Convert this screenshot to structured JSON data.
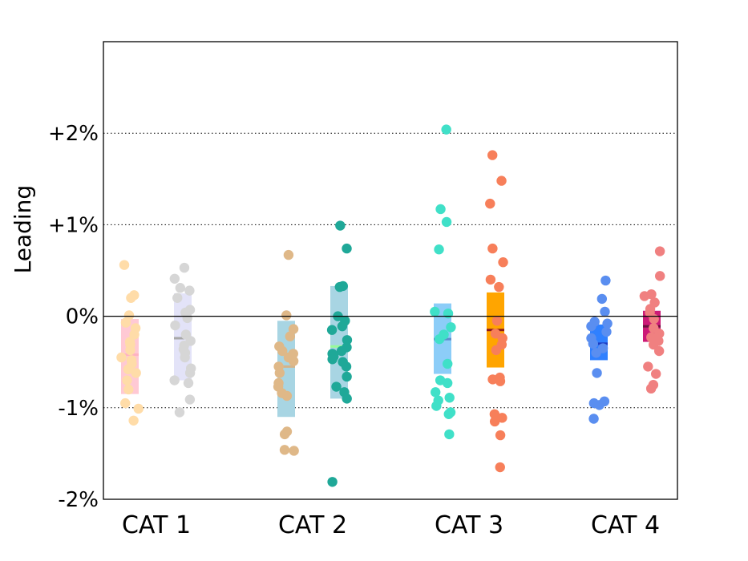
{
  "chart_data": {
    "type": "scatter",
    "ylabel": "Leading",
    "categories": [
      "CAT 1",
      "CAT 2",
      "CAT 3",
      "CAT 4"
    ],
    "y_ticks": [
      {
        "value": -2,
        "label": "-2%"
      },
      {
        "value": -1,
        "label": "-1%"
      },
      {
        "value": 0,
        "label": "0%"
      },
      {
        "value": 1,
        "label": "+1%"
      },
      {
        "value": 2,
        "label": "+2%"
      }
    ],
    "ylim": [
      -2,
      3
    ],
    "grid": "horizontal-dotted",
    "series": [
      {
        "category": "CAT 1",
        "position": "left",
        "point_color": "#ffdca8",
        "box_color": "#ffc9d4",
        "median_color": "#ffb3c1",
        "box": {
          "low": -0.85,
          "high": -0.03,
          "median": -0.42
        },
        "values": [
          0.56,
          0.23,
          0.2,
          0.01,
          -0.07,
          -0.13,
          -0.2,
          -0.28,
          -0.31,
          -0.37,
          -0.45,
          -0.48,
          -0.52,
          -0.58,
          -0.62,
          -0.7,
          -0.8,
          -0.95,
          -1.01,
          -1.14
        ]
      },
      {
        "category": "CAT 1",
        "position": "right",
        "point_color": "#d6d6d6",
        "box_color": "#e3e3f8",
        "median_color": "#a8a8a8",
        "box": {
          "low": -0.7,
          "high": 0.25,
          "median": -0.24
        },
        "values": [
          0.53,
          0.41,
          0.31,
          0.28,
          0.2,
          0.07,
          0.04,
          -0.02,
          -0.1,
          -0.2,
          -0.27,
          -0.32,
          -0.36,
          -0.4,
          -0.45,
          -0.57,
          -0.62,
          -0.7,
          -0.73,
          -0.91,
          -1.05
        ]
      },
      {
        "category": "CAT 2",
        "position": "left",
        "point_color": "#dfb888",
        "box_color": "#a8d5e3",
        "median_color": "#d2b48c",
        "box": {
          "low": -1.1,
          "high": -0.05,
          "median": -0.55
        },
        "values": [
          0.67,
          0.01,
          -0.14,
          -0.22,
          -0.33,
          -0.38,
          -0.41,
          -0.45,
          -0.49,
          -0.55,
          -0.62,
          -0.73,
          -0.77,
          -0.84,
          -0.87,
          -1.26,
          -1.29,
          -1.46,
          -1.47
        ]
      },
      {
        "category": "CAT 2",
        "position": "right",
        "point_color": "#1fa898",
        "box_color": "#a8d5e3",
        "median_color": "#98fb98",
        "box": {
          "low": -0.9,
          "high": 0.33,
          "median": -0.33
        },
        "values": [
          0.99,
          0.74,
          0.33,
          0.32,
          0.0,
          -0.05,
          -0.11,
          -0.15,
          -0.26,
          -0.34,
          -0.38,
          -0.41,
          -0.44,
          -0.47,
          -0.5,
          -0.55,
          -0.66,
          -0.77,
          -0.83,
          -0.9,
          -1.81
        ]
      },
      {
        "category": "CAT 3",
        "position": "left",
        "point_color": "#40e0c8",
        "box_color": "#8ccdf8",
        "median_color": "#5b8fcc",
        "box": {
          "low": -0.63,
          "high": 0.14,
          "median": -0.25
        },
        "values": [
          2.04,
          1.17,
          1.03,
          0.73,
          0.05,
          0.03,
          -0.12,
          -0.2,
          -0.25,
          -0.52,
          -0.7,
          -0.73,
          -0.83,
          -0.89,
          -0.92,
          -0.98,
          -1.05,
          -1.07,
          -1.29
        ]
      },
      {
        "category": "CAT 3",
        "position": "right",
        "point_color": "#f77f5a",
        "box_color": "#ffa500",
        "median_color": "#8b1a1a",
        "box": {
          "low": -0.56,
          "high": 0.26,
          "median": -0.15
        },
        "values": [
          1.76,
          1.48,
          1.23,
          0.74,
          0.59,
          0.4,
          0.32,
          -0.05,
          -0.19,
          -0.24,
          -0.31,
          -0.37,
          -0.67,
          -0.69,
          -0.71,
          -1.07,
          -1.11,
          -1.15,
          -1.3,
          -1.65
        ]
      },
      {
        "category": "CAT 4",
        "position": "left",
        "point_color": "#5a8ef0",
        "box_color": "#2f80ff",
        "median_color": "#1c3cc2",
        "box": {
          "low": -0.48,
          "high": -0.09,
          "median": -0.3
        },
        "values": [
          0.39,
          0.19,
          0.05,
          -0.06,
          -0.08,
          -0.11,
          -0.17,
          -0.24,
          -0.3,
          -0.35,
          -0.4,
          -0.62,
          -0.93,
          -0.95,
          -0.97,
          -1.12
        ]
      },
      {
        "category": "CAT 4",
        "position": "right",
        "point_color": "#f08080",
        "box_color": "#cc1a77",
        "median_color": "#6a0f3d",
        "box": {
          "low": -0.28,
          "high": 0.06,
          "median": -0.11
        },
        "values": [
          0.71,
          0.44,
          0.24,
          0.22,
          0.15,
          0.08,
          0.04,
          -0.03,
          -0.13,
          -0.19,
          -0.23,
          -0.27,
          -0.31,
          -0.38,
          -0.55,
          -0.63,
          -0.75,
          -0.79
        ]
      }
    ]
  }
}
